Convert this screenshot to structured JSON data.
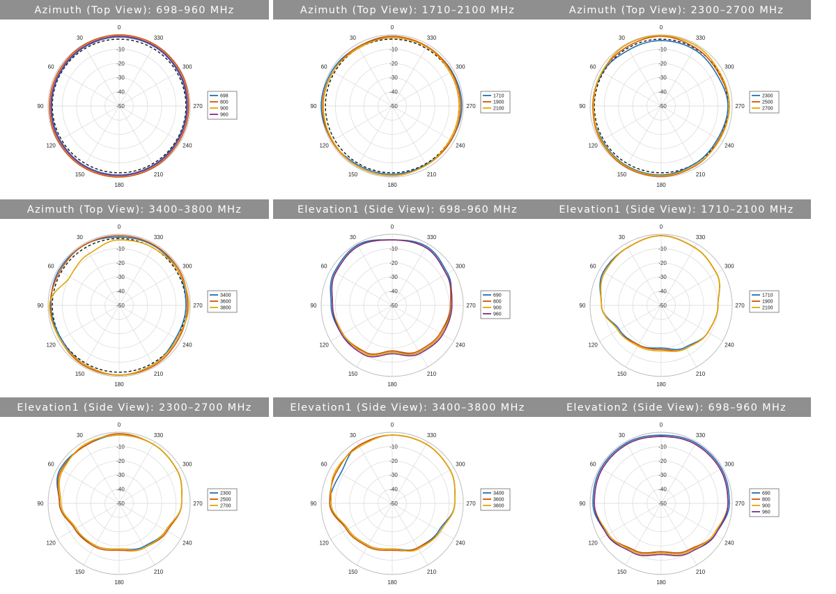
{
  "chart_data": [
    {
      "type": "polar-line",
      "title": "Azimuth (Top View): 698–960 MHz",
      "legend_position": "right",
      "ref_dashed": true,
      "colors": [
        "#1f6fb4",
        "#d35400",
        "#e5a500",
        "#7b2d8e"
      ],
      "series": [
        {
          "name": "698",
          "values": [
            -1.5,
            -2,
            -2.5,
            -2.5,
            -2,
            -1.5,
            -1.5,
            -2,
            -2.5,
            -2.5,
            -2,
            -1.5
          ]
        },
        {
          "name": "800",
          "values": [
            0,
            -0.5,
            -1,
            -1,
            -0.5,
            0,
            0,
            -0.5,
            -1,
            -1,
            -0.5,
            0
          ]
        },
        {
          "name": "900",
          "values": [
            -1,
            -1.5,
            -2,
            -2,
            -1.5,
            -1,
            -1,
            -1.5,
            -2,
            -2,
            -1.5,
            -1
          ]
        },
        {
          "name": "960",
          "values": [
            -1,
            -1.5,
            -2,
            -2,
            -1.5,
            -1,
            -1,
            -1.5,
            -2,
            -2,
            -1.5,
            -1
          ]
        }
      ],
      "angle_ticks": [
        "0",
        "30",
        "60",
        "90",
        "120",
        "150",
        "180",
        "210",
        "240",
        "270",
        "300",
        "330"
      ],
      "radial_ticks": [
        "-10",
        "-20",
        "-30",
        "-40",
        "-50"
      ],
      "rlim": [
        -50,
        0
      ]
    },
    {
      "type": "polar-line",
      "title": "Azimuth (Top View): 1710–2100 MHz",
      "legend_position": "right",
      "ref_dashed": true,
      "colors": [
        "#1f6fb4",
        "#d35400",
        "#e5a500"
      ],
      "series": [
        {
          "name": "1710",
          "values": [
            -2,
            -2,
            -1,
            0,
            -1,
            -2,
            -2,
            -2.5,
            -2,
            -1,
            -1.5,
            -2
          ]
        },
        {
          "name": "1900",
          "values": [
            -1,
            -2,
            -2,
            -1,
            -1,
            -1,
            -1,
            -2,
            -2,
            -2,
            -2,
            -1.5
          ]
        },
        {
          "name": "2100",
          "values": [
            -2,
            -3,
            -2,
            -1.5,
            -1.5,
            -1,
            -1,
            -2,
            -3,
            -3,
            -3,
            -2
          ]
        }
      ],
      "angle_ticks": [
        "0",
        "30",
        "60",
        "90",
        "120",
        "150",
        "180",
        "210",
        "240",
        "270",
        "300",
        "330"
      ],
      "radial_ticks": [
        "-10",
        "-20",
        "-30",
        "-40",
        "-50"
      ],
      "rlim": [
        -50,
        0
      ]
    },
    {
      "type": "polar-line",
      "title": "Azimuth (Top View): 2300–2700 MHz",
      "legend_position": "right",
      "ref_dashed": true,
      "colors": [
        "#1f6fb4",
        "#d35400",
        "#e5a500"
      ],
      "series": [
        {
          "name": "2300",
          "values": [
            -4,
            -4.5,
            -2.5,
            -2,
            -2,
            -1.5,
            -1.5,
            -3,
            -4,
            -3,
            -5,
            -4
          ]
        },
        {
          "name": "2500",
          "values": [
            -1,
            -2,
            -2,
            -2,
            -1,
            -0.5,
            -0.5,
            -1.5,
            -3,
            -2,
            -3.5,
            -2.5
          ]
        },
        {
          "name": "2700",
          "values": [
            -0.5,
            -0.5,
            -2,
            -2.5,
            -1.5,
            -1,
            -1,
            -2,
            -2.5,
            -2,
            -2.5,
            -1
          ]
        }
      ],
      "angle_ticks": [
        "0",
        "30",
        "60",
        "90",
        "120",
        "150",
        "180",
        "210",
        "240",
        "270",
        "300",
        "330"
      ],
      "radial_ticks": [
        "-10",
        "-20",
        "-30",
        "-40",
        "-50"
      ],
      "rlim": [
        -50,
        0
      ]
    },
    {
      "type": "polar-line",
      "title": "Azimuth (Top View): 3400–3800 MHz",
      "legend_position": "right",
      "ref_dashed": true,
      "colors": [
        "#1f6fb4",
        "#d35400",
        "#e5a500"
      ],
      "series": [
        {
          "name": "3400",
          "values": [
            -2,
            -1,
            -1,
            -2,
            -3,
            -2,
            -1,
            -2,
            -4,
            -3,
            -2,
            -1.5
          ]
        },
        {
          "name": "3600",
          "values": [
            -1,
            -1,
            -2,
            -1.5,
            -2,
            -1,
            -1,
            -1,
            -2,
            -2,
            -1,
            -1
          ]
        },
        {
          "name": "3800",
          "values": [
            -4,
            -8,
            -10,
            -1,
            -2,
            -2,
            -1,
            -2,
            -3,
            -1,
            -2,
            -3
          ]
        }
      ],
      "angle_ticks": [
        "0",
        "30",
        "60",
        "90",
        "120",
        "150",
        "180",
        "210",
        "240",
        "270",
        "300",
        "330"
      ],
      "radial_ticks": [
        "-10",
        "-20",
        "-30",
        "-40",
        "-50"
      ],
      "rlim": [
        -50,
        0
      ]
    },
    {
      "type": "polar-line",
      "title": "Elevation1 (Side View): 698–960 MHz",
      "legend_position": "right",
      "ref_dashed": false,
      "colors": [
        "#1f6fb4",
        "#d35400",
        "#e5a500",
        "#7b2d8e"
      ],
      "series": [
        {
          "name": "690",
          "values": [
            -4,
            -1,
            -3,
            -7,
            -9,
            -12,
            -18,
            -12,
            -10,
            -9,
            -5,
            -2
          ]
        },
        {
          "name": "800",
          "values": [
            -4,
            -2,
            -4,
            -8,
            -10,
            -12,
            -18,
            -13,
            -11,
            -9,
            -6,
            -3
          ]
        },
        {
          "name": "900",
          "values": [
            -4,
            -2,
            -4,
            -8,
            -10,
            -11,
            -17,
            -12,
            -10,
            -8,
            -6,
            -3
          ]
        },
        {
          "name": "960",
          "values": [
            -4,
            -2,
            -4,
            -8,
            -9,
            -10,
            -16,
            -11,
            -9,
            -8,
            -6,
            -3
          ]
        }
      ],
      "angle_ticks": [
        "0",
        "30",
        "60",
        "90",
        "120",
        "150",
        "180",
        "210",
        "240",
        "270",
        "300",
        "330"
      ],
      "radial_ticks": [
        "-10",
        "-20",
        "-30",
        "-40",
        "-50"
      ],
      "rlim": [
        -50,
        0
      ]
    },
    {
      "type": "polar-line",
      "title": "Elevation1 (Side View): 1710–2100 MHz",
      "legend_position": "right",
      "ref_dashed": false,
      "colors": [
        "#1f6fb4",
        "#d35400",
        "#e5a500"
      ],
      "series": [
        {
          "name": "1710",
          "values": [
            -1,
            -3,
            -3,
            -8,
            -16,
            -18,
            -20,
            -16,
            -12,
            -10,
            -5,
            -3
          ]
        },
        {
          "name": "1900",
          "values": [
            -1,
            -3,
            -4,
            -8,
            -15,
            -18,
            -19,
            -15,
            -12,
            -10,
            -5,
            -3
          ]
        },
        {
          "name": "2100",
          "values": [
            -1,
            -3,
            -4,
            -8,
            -15,
            -17,
            -18,
            -15,
            -12,
            -10,
            -5,
            -3
          ]
        }
      ],
      "angle_ticks": [
        "0",
        "30",
        "60",
        "90",
        "120",
        "150",
        "180",
        "210",
        "240",
        "270",
        "300",
        "330"
      ],
      "radial_ticks": [
        "-10",
        "-20",
        "-30",
        "-40",
        "-50"
      ],
      "rlim": [
        -50,
        0
      ]
    },
    {
      "type": "polar-line",
      "title": "Elevation1 (Side View): 2300–2700 MHz",
      "legend_position": "right",
      "ref_dashed": false,
      "colors": [
        "#1f6fb4",
        "#d35400",
        "#e5a500"
      ],
      "series": [
        {
          "name": "2300",
          "values": [
            -2,
            -3,
            -2,
            -8,
            -14,
            -16,
            -18,
            -15,
            -12,
            -6,
            -3,
            -2
          ]
        },
        {
          "name": "2500",
          "values": [
            -1,
            -3,
            -3,
            -8,
            -14,
            -15,
            -17,
            -14,
            -11,
            -6,
            -3,
            -2
          ]
        },
        {
          "name": "2700",
          "values": [
            -2,
            -2,
            -4,
            -9,
            -15,
            -16,
            -18,
            -14,
            -12,
            -6,
            -3,
            -2
          ]
        }
      ],
      "angle_ticks": [
        "0",
        "30",
        "60",
        "90",
        "120",
        "150",
        "180",
        "210",
        "240",
        "270",
        "300",
        "330"
      ],
      "radial_ticks": [
        "-10",
        "-20",
        "-30",
        "-40",
        "-50"
      ],
      "rlim": [
        -50,
        0
      ]
    },
    {
      "type": "polar-line",
      "title": "Elevation1 (Side View): 3400–3800 MHz",
      "legend_position": "right",
      "ref_dashed": false,
      "colors": [
        "#1f6fb4",
        "#d35400",
        "#e5a500"
      ],
      "series": [
        {
          "name": "3400",
          "values": [
            -2,
            -3,
            -8,
            -6,
            -14,
            -16,
            -18,
            -14,
            -12,
            -6,
            -3,
            -2
          ]
        },
        {
          "name": "3600",
          "values": [
            -2,
            -3,
            -5,
            -6,
            -13,
            -15,
            -17,
            -14,
            -11,
            -6,
            -3,
            -2
          ]
        },
        {
          "name": "3800",
          "values": [
            -2,
            -4,
            -4,
            -7,
            -14,
            -16,
            -18,
            -13,
            -11,
            -6,
            -3,
            -2
          ]
        }
      ],
      "angle_ticks": [
        "0",
        "30",
        "60",
        "90",
        "120",
        "150",
        "180",
        "210",
        "240",
        "270",
        "300",
        "330"
      ],
      "radial_ticks": [
        "-10",
        "-20",
        "-30",
        "-40",
        "-50"
      ],
      "rlim": [
        -50,
        0
      ]
    },
    {
      "type": "polar-line",
      "title": "Elevation2 (Side View): 698–960 MHz",
      "legend_position": "right",
      "ref_dashed": false,
      "colors": [
        "#1f6fb4",
        "#d35400",
        "#e5a500",
        "#7b2d8e"
      ],
      "series": [
        {
          "name": "690",
          "values": [
            -2,
            -1,
            -1,
            -2,
            -6,
            -12,
            -16,
            -12,
            -6,
            -2,
            -1,
            -1
          ]
        },
        {
          "name": "800",
          "values": [
            -3,
            -2,
            -2,
            -3,
            -7,
            -12,
            -16,
            -12,
            -7,
            -3,
            -2,
            -2
          ]
        },
        {
          "name": "900",
          "values": [
            -3,
            -2,
            -2,
            -3,
            -7,
            -11,
            -15,
            -11,
            -7,
            -3,
            -2,
            -2
          ]
        },
        {
          "name": "960",
          "values": [
            -3,
            -2,
            -2,
            -3,
            -6,
            -10,
            -14,
            -10,
            -6,
            -3,
            -2,
            -2
          ]
        }
      ],
      "angle_ticks": [
        "0",
        "30",
        "60",
        "90",
        "120",
        "150",
        "180",
        "210",
        "240",
        "270",
        "300",
        "330"
      ],
      "radial_ticks": [
        "-10",
        "-20",
        "-30",
        "-40",
        "-50"
      ],
      "rlim": [
        -50,
        0
      ]
    }
  ]
}
